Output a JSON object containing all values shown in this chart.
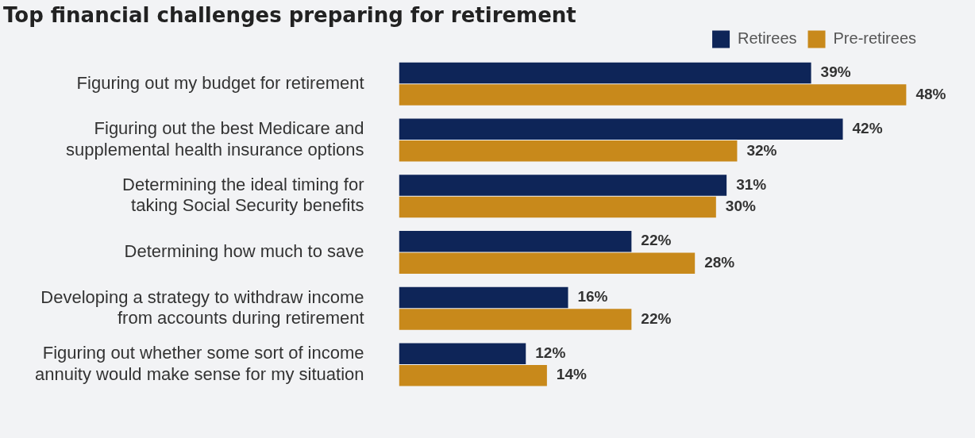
{
  "chart_data": {
    "type": "bar",
    "orientation": "horizontal",
    "title": "Top financial challenges preparing for retirement",
    "categories": [
      "Figuring out my budget for retirement",
      "Figuring out the best Medicare and\nsupplemental health insurance options",
      "Determining the ideal timing for\ntaking Social Security benefits",
      "Determining how much to save",
      "Developing a strategy to withdraw income\nfrom accounts during retirement",
      "Figuring out whether some sort of income\nannuity would make sense for my situation"
    ],
    "series": [
      {
        "name": "Retirees",
        "color": "#0e2558",
        "values": [
          39,
          42,
          31,
          22,
          16,
          12
        ],
        "value_labels": [
          "39%",
          "42%",
          "31%",
          "22%",
          "16%",
          "12%"
        ]
      },
      {
        "name": "Pre-retirees",
        "color": "#c8891b",
        "values": [
          48,
          32,
          30,
          28,
          22,
          14
        ],
        "value_labels": [
          "48%",
          "32%",
          "30%",
          "28%",
          "22%",
          "14%"
        ]
      }
    ],
    "legend": "top right",
    "grid": false
  }
}
